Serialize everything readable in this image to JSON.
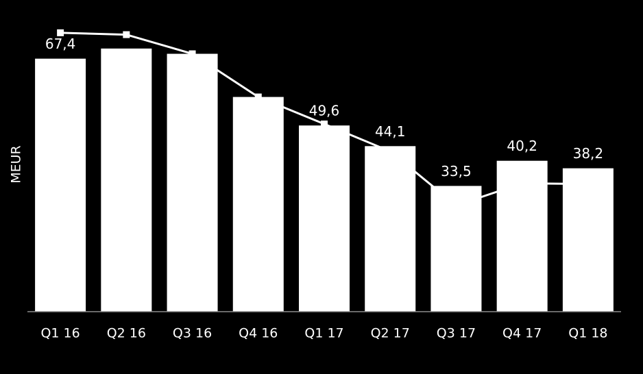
{
  "chart_data": {
    "type": "bar",
    "y_label": "MEUR",
    "categories": [
      "Q1 16",
      "Q2 16",
      "Q3 16",
      "Q4 16",
      "Q1 17",
      "Q2 17",
      "Q3 17",
      "Q4 17",
      "Q1 18"
    ],
    "ylim": [
      0,
      75
    ],
    "series": [
      {
        "type": "bar",
        "color": "#ffffff",
        "values": [
          67.4,
          70.1,
          68.7,
          57.2,
          49.6,
          44.1,
          33.5,
          40.2,
          38.2
        ],
        "value_labels": [
          "67,4",
          null,
          null,
          null,
          "49,6",
          "44,1",
          "33,5",
          "40,2",
          "38,2"
        ]
      },
      {
        "type": "line",
        "color": "#ffffff",
        "values": [
          74.3,
          73.8,
          68.7,
          57.2,
          50.0,
          42.7,
          28.3,
          34.2,
          34.0
        ]
      }
    ]
  }
}
